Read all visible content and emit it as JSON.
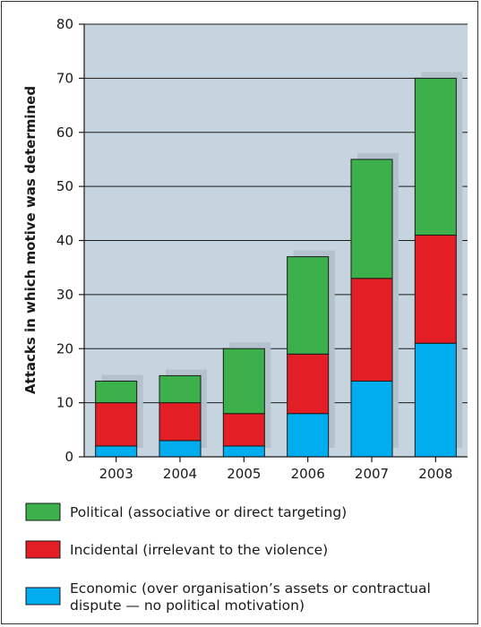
{
  "chart_data": {
    "type": "bar",
    "stacked": true,
    "categories": [
      "2003",
      "2004",
      "2005",
      "2006",
      "2007",
      "2008"
    ],
    "series": [
      {
        "name": "Economic (over organisation’s assets or contractual dispute — no political motivation)",
        "values": [
          2,
          3,
          2,
          8,
          14,
          21
        ],
        "color": "#00aeef"
      },
      {
        "name": "Incidental (irrelevant to the violence)",
        "values": [
          8,
          7,
          6,
          11,
          19,
          20
        ],
        "color": "#e31e24"
      },
      {
        "name": "Political (associative or direct targeting)",
        "values": [
          4,
          5,
          12,
          18,
          22,
          29
        ],
        "color": "#3cb04a"
      }
    ],
    "xlabel": "",
    "ylabel": "Attacks in which motive was determined",
    "ylim": [
      0,
      80
    ],
    "yticks": [
      0,
      10,
      20,
      30,
      40,
      50,
      60,
      70,
      80
    ],
    "grid": true,
    "legend_position": "bottom",
    "plot_background": "#c6d4df",
    "shadow_color": "#b3c2cd"
  },
  "legend": {
    "political": "Political (associative or direct targeting)",
    "incidental": "Incidental (irrelevant to the violence)",
    "economic_line1": "Economic (over organisation’s assets or contractual",
    "economic_line2": "dispute — no political motivation)"
  }
}
